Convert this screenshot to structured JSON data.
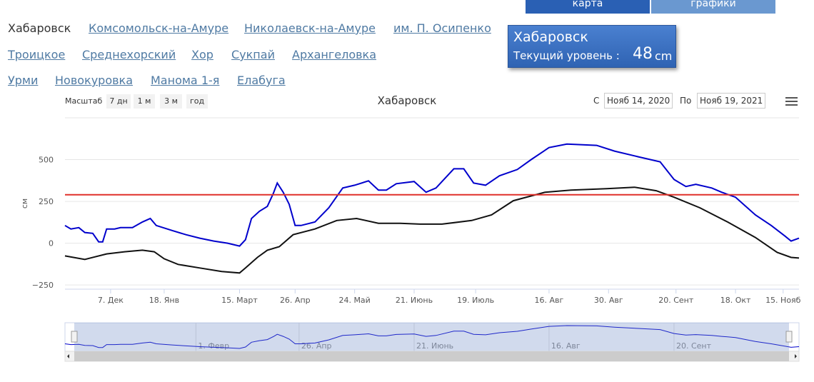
{
  "tabs": [
    "карта",
    "графики"
  ],
  "stations": [
    "Хабаровск",
    "Комсомольск-на-Амуре",
    "Николаевск-на-Амуре",
    "им. П. Осипенко",
    "Троицкое",
    "Среднехорский",
    "Хор",
    "Сукпай",
    "Архангеловка",
    "Урми",
    "Новокуровка",
    "Манома 1-я",
    "Елабуга"
  ],
  "info": {
    "station": "Хабаровск",
    "label": "Текущий уровень :",
    "value": 48,
    "unit": "cm"
  },
  "range_selector": {
    "label": "Масштаб",
    "buttons": [
      "7 дн",
      "1 м",
      "3 м",
      "год"
    ]
  },
  "date_range": {
    "from_label": "С",
    "from": "Нояб 14, 2020",
    "to_label": "По",
    "to": "Нояб 19, 2021"
  },
  "chart_data": {
    "type": "line",
    "title": "Хабаровск",
    "y_label": "см",
    "ylim": [
      -275,
      750
    ],
    "yticks": [
      {
        "value": -250,
        "label": "−250"
      },
      0,
      250,
      500
    ],
    "xlim": [
      0,
      370
    ],
    "xticks": [
      {
        "value": 23,
        "label": "7. Дек"
      },
      {
        "value": 50,
        "label": "18. Янв"
      },
      {
        "value": 88,
        "label": "15. Март"
      },
      {
        "value": 116,
        "label": "26. Апр"
      },
      {
        "value": 146,
        "label": "24. Май"
      },
      {
        "value": 176,
        "label": "21. Июнь"
      },
      {
        "value": 207,
        "label": "19. Июль"
      },
      {
        "value": 244,
        "label": "16. Авг"
      },
      {
        "value": 274,
        "label": "30. Авг"
      },
      {
        "value": 308,
        "label": "20. Сент"
      },
      {
        "value": 338,
        "label": "18. Окт"
      },
      {
        "value": 362,
        "label": "15. Нояб"
      }
    ],
    "navigator_ticks": [
      {
        "value": 66,
        "label": "1. Февр"
      },
      {
        "value": 118,
        "label": "26. Апр"
      },
      {
        "value": 176,
        "label": "21. Июнь"
      },
      {
        "value": 244,
        "label": "16. Авг"
      },
      {
        "value": 307,
        "label": "20. Сент"
      }
    ],
    "grid": true,
    "series": [
      {
        "color": "#0000cc",
        "x": [
          0,
          3,
          7,
          10,
          14,
          17,
          19,
          21,
          25,
          28,
          34,
          39,
          43,
          46,
          54,
          61,
          68,
          75,
          82,
          88,
          91,
          94,
          98,
          102,
          105,
          107,
          110,
          113,
          116,
          119,
          126,
          133,
          140,
          146,
          153,
          158,
          162,
          167,
          176,
          182,
          187,
          196,
          201,
          206,
          212,
          219,
          228,
          235,
          244,
          253,
          268,
          277,
          289,
          300,
          307,
          313,
          318,
          326,
          331,
          338,
          348,
          356,
          363,
          366,
          370
        ],
        "values": [
          106,
          85,
          93,
          64,
          59,
          8,
          8,
          85,
          85,
          93,
          93,
          127,
          148,
          106,
          76,
          51,
          30,
          13,
          0,
          -17,
          21,
          148,
          191,
          220,
          297,
          360,
          305,
          233,
          106,
          106,
          127,
          212,
          330,
          347,
          373,
          318,
          318,
          356,
          369,
          305,
          330,
          445,
          445,
          360,
          347,
          403,
          441,
          500,
          572,
          593,
          585,
          551,
          517,
          487,
          381,
          339,
          352,
          330,
          305,
          275,
          169,
          106,
          42,
          13,
          30
        ]
      },
      {
        "color": "#111111",
        "x": [
          0,
          10,
          21,
          30,
          39,
          45,
          50,
          57,
          68,
          79,
          88,
          91,
          97,
          102,
          108,
          115,
          126,
          137,
          147,
          158,
          169,
          179,
          190,
          205,
          215,
          226,
          242,
          255,
          273,
          287,
          298,
          307,
          320,
          334,
          348,
          359,
          366,
          370
        ],
        "values": [
          -76,
          -97,
          -64,
          -51,
          -42,
          -51,
          -93,
          -127,
          -148,
          -169,
          -178,
          -148,
          -85,
          -42,
          -21,
          51,
          85,
          136,
          148,
          119,
          119,
          114,
          114,
          136,
          169,
          254,
          305,
          318,
          326,
          335,
          314,
          275,
          212,
          127,
          34,
          -55,
          -85,
          -89
        ]
      },
      {
        "color": "#e0302a",
        "x": [
          0,
          370
        ],
        "values": [
          290,
          290
        ]
      }
    ]
  }
}
